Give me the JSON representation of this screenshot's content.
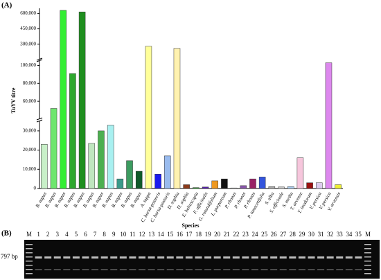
{
  "chart_data": {
    "type": "bar",
    "panel_label": "(A)",
    "ylabel": "TuYV titre",
    "xlabel": "Species",
    "categories": [
      "B. napus",
      "B. napus",
      "B. napus",
      "B. napus",
      "B. napus",
      "B. napus",
      "B. napus",
      "B. napus",
      "B. napus",
      "B. napus",
      "B. napus",
      "A. tappa",
      "C. bursa-pastoris",
      "C. bursa-pastoris",
      "D. sophia",
      "D. sophia",
      "E. helioscopia",
      "F. officinalis",
      "G. rotundifolium",
      "L. purpureum",
      "P. rhoeas",
      "P. rhoeas",
      "P. rhoeas",
      "P. tanacetifolia",
      "S. alba",
      "S. officinale",
      "S. media",
      "T. arvense",
      "T. inodorum",
      "V. persica",
      "V. persica",
      "V. arvensis"
    ],
    "values": [
      23000,
      52000,
      630000,
      91000,
      615000,
      23500,
      30000,
      33000,
      5000,
      14500,
      9000,
      280000,
      7500,
      17000,
      260000,
      2000,
      500,
      800,
      4000,
      5000,
      300,
      1500,
      5000,
      6000,
      1000,
      800,
      1000,
      16000,
      3000,
      3000,
      103000,
      2000
    ],
    "colors": [
      "#c8f0c8",
      "#6ee66e",
      "#33ee33",
      "#2ea82e",
      "#1f8f1f",
      "#bfe6bf",
      "#4caf50",
      "#a8f0f0",
      "#3a9a8a",
      "#3c9c60",
      "#0f5a2a",
      "#ffff99",
      "#1a1aee",
      "#99bbee",
      "#fff2b0",
      "#8b3a1a",
      "#33aa33",
      "#5522aa",
      "#ee9922",
      "#111111",
      "#dddddd",
      "#8855aa",
      "#992266",
      "#3355dd",
      "#aaaaaa",
      "#cccccc",
      "#aaccee",
      "#f6c6dc",
      "#991111",
      "#ddccee",
      "#dd88ee",
      "#eeee33"
    ],
    "y_segments": [
      {
        "ylim": [
          0,
          35000
        ],
        "yticks": [
          0,
          {
            "value": 10000,
            "label": "10,000"
          },
          {
            "value": 20000,
            "label": "20,000"
          },
          {
            "value": 30000,
            "label": "30,000"
          }
        ]
      },
      {
        "ylim": [
          40000,
          105000
        ],
        "yticks": [
          {
            "value": 60000,
            "label": "60,000"
          },
          {
            "value": 80000,
            "label": "80,000"
          },
          {
            "value": 100000,
            "label": "100,000"
          }
        ]
      },
      {
        "ylim": [
          150000,
          650000
        ],
        "yticks": [
          {
            "value": 300000,
            "label": "300,000"
          },
          {
            "value": 450000,
            "label": "450,000"
          },
          {
            "value": 600000,
            "label": "600,000"
          }
        ]
      }
    ]
  },
  "gel": {
    "panel_label": "(B)",
    "size_label": "797 bp",
    "lanes": [
      "M",
      "1",
      "2",
      "3",
      "4",
      "5",
      "6",
      "7",
      "8",
      "9",
      "10",
      "11",
      "12",
      "13",
      "14",
      "15",
      "16",
      "17",
      "18",
      "19",
      "20",
      "21",
      "22",
      "23",
      "24",
      "25",
      "26",
      "27",
      "28",
      "29",
      "30",
      "31",
      "32",
      "33",
      "34",
      "35",
      "M"
    ]
  }
}
